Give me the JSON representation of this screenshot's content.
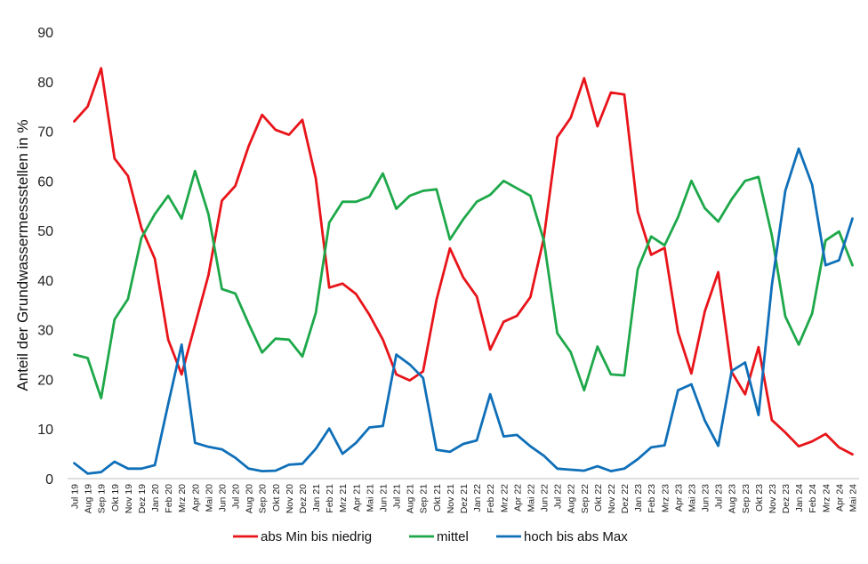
{
  "chart_data": {
    "type": "line",
    "title": "",
    "xlabel": "",
    "ylabel": "Anteil der Grundwassermessstellen  in %",
    "ylim": [
      0,
      90
    ],
    "yticks": [
      0,
      10,
      20,
      30,
      40,
      50,
      60,
      70,
      80,
      90
    ],
    "grid": false,
    "legend_position": "bottom",
    "categories": [
      "Jul 19",
      "Aug 19",
      "Sep 19",
      "Okt 19",
      "Nov 19",
      "Dez 19",
      "Jan 20",
      "Feb 20",
      "Mrz 20",
      "Apr 20",
      "Mai 20",
      "Jun 20",
      "Jul 20",
      "Aug 20",
      "Sep 20",
      "Okt 20",
      "Nov 20",
      "Dez 20",
      "Jan 21",
      "Feb 21",
      "Mrz 21",
      "Apr 21",
      "Mai 21",
      "Jun 21",
      "Jul 21",
      "Aug 21",
      "Sep 21",
      "Okt 21",
      "Nov 21",
      "Dez 21",
      "Jan 22",
      "Feb 22",
      "Mrz 22",
      "Apr 22",
      "Mai 22",
      "Jun 22",
      "Jul 22",
      "Aug 22",
      "Sep 22",
      "Okt 22",
      "Nov 22",
      "Dez 22",
      "Jan 23",
      "Feb 23",
      "Mrz 23",
      "Apr 23",
      "Mai 23",
      "Jun 23",
      "Jul 23",
      "Aug 23",
      "Sep 23",
      "Okt 23",
      "Nov 23",
      "Dez 23",
      "Jan 24",
      "Feb 24",
      "Mrz 24",
      "Apr 24",
      "Mai 24"
    ],
    "series": [
      {
        "name": "abs Min bis niedrig",
        "color": "#e8141a",
        "values": [
          72,
          75,
          82.7,
          64.5,
          61,
          50.5,
          44.3,
          28,
          21,
          31,
          41,
          56,
          59,
          67,
          73.3,
          70.3,
          69.3,
          72.3,
          60.5,
          38.5,
          39.3,
          37.2,
          33,
          28,
          21,
          19.8,
          21.6,
          36,
          46.4,
          40.5,
          36.7,
          26,
          31.6,
          32.8,
          36.6,
          48.5,
          68.8,
          72.7,
          80.7,
          71,
          77.8,
          77.4,
          53.8,
          45.1,
          46.5,
          29.5,
          21.2,
          33.7,
          41.6,
          21.5,
          17,
          26.5,
          11.8,
          9.3,
          6.5,
          7.5,
          9,
          6.3,
          4.9
        ]
      },
      {
        "name": "mittel",
        "color": "#1ea84a",
        "values": [
          25,
          24.3,
          16.2,
          32.1,
          36.2,
          48.5,
          53.3,
          57,
          52.4,
          62,
          53.3,
          38.2,
          37.3,
          31.2,
          25.4,
          28.2,
          28,
          24.6,
          33.4,
          51.6,
          55.8,
          55.8,
          56.8,
          61.5,
          54.4,
          57,
          58,
          58.3,
          48.2,
          52.3,
          55.8,
          57.2,
          60,
          58.5,
          57,
          48,
          29.3,
          25.5,
          17.8,
          26.6,
          21,
          20.8,
          42.2,
          48.8,
          47,
          52.7,
          60,
          54.5,
          51.8,
          56.3,
          60,
          60.8,
          49,
          32.7,
          27,
          33.3,
          48,
          49.8,
          43
        ]
      },
      {
        "name": "hoch bis abs Max",
        "color": "#0f6fb8",
        "values": [
          3.1,
          1,
          1.3,
          3.4,
          2,
          2,
          2.7,
          15,
          27,
          7.2,
          6.4,
          5.9,
          4.2,
          2,
          1.5,
          1.6,
          2.8,
          3,
          6,
          10.1,
          5,
          7.2,
          10.3,
          10.6,
          25,
          23,
          20.3,
          5.8,
          5.4,
          7,
          7.7,
          17,
          8.5,
          8.8,
          6.5,
          4.6,
          2,
          1.8,
          1.6,
          2.5,
          1.5,
          2,
          3.9,
          6.3,
          6.7,
          17.8,
          19,
          11.7,
          6.6,
          21.7,
          23.4,
          12.8,
          39,
          58,
          66.5,
          59.2,
          43,
          44,
          52.4
        ]
      }
    ]
  }
}
